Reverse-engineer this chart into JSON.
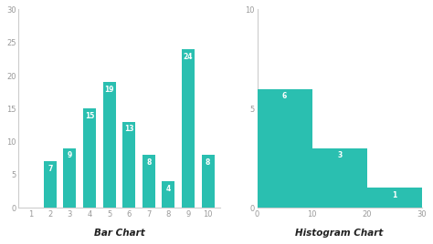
{
  "bar_categories": [
    1,
    2,
    3,
    4,
    5,
    6,
    7,
    8,
    9,
    10
  ],
  "bar_values": [
    0,
    7,
    9,
    15,
    19,
    13,
    8,
    4,
    24,
    8
  ],
  "bar_color": "#2abfb0",
  "bar_ylim": [
    0,
    30
  ],
  "bar_yticks": [
    0,
    5,
    10,
    15,
    20,
    25,
    30
  ],
  "bar_xticks": [
    1,
    2,
    3,
    4,
    5,
    6,
    7,
    8,
    9,
    10
  ],
  "bar_title": "Bar Chart",
  "hist_bins": [
    0,
    10,
    20,
    30
  ],
  "hist_values": [
    6,
    3,
    1
  ],
  "hist_color": "#2abfb0",
  "hist_xlim": [
    0,
    30
  ],
  "hist_ylim": [
    0,
    10
  ],
  "hist_yticks": [
    0,
    5,
    10
  ],
  "hist_xticks": [
    0,
    10,
    20,
    30
  ],
  "hist_title": "Histogram Chart",
  "label_color": "#ffffff",
  "label_fontsize": 5.5,
  "title_fontsize": 7.5,
  "background_color": "#ffffff",
  "spine_color": "#cccccc",
  "tick_color": "#999999",
  "tick_fontsize": 6
}
